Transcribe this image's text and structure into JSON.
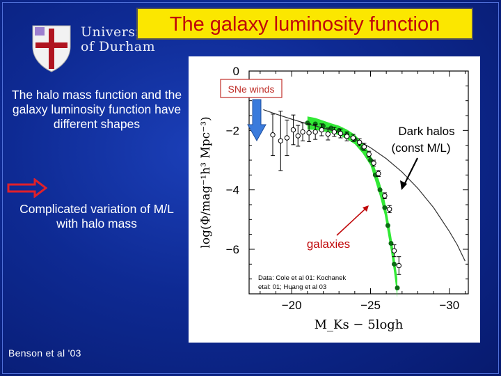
{
  "slide": {
    "title": "The galaxy luminosity function",
    "university": {
      "line1": "University",
      "line2": "of Durham"
    },
    "left_text_1": "The halo mass function and the galaxy luminosity function have different shapes",
    "left_text_2": "Complicated variation of M/L with halo mass",
    "credit": "Benson et al '03"
  },
  "colors": {
    "title_bg": "#fbe700",
    "title_text": "#c0080a",
    "arrow_red": "#e0202a",
    "green_band": "#27e82b",
    "blue_arrow": "#3a7bdc"
  },
  "icons": {
    "crest": "durham-crest-icon",
    "right_arrow": "right-arrow-icon"
  },
  "chart_data": {
    "type": "scatter",
    "xlabel": "M_Ks − 5logh",
    "ylabel": "log(Φ/mag⁻¹h³ Mpc⁻³)",
    "xlim": [
      -17.3,
      -31.2
    ],
    "ylim": [
      -7.5,
      0.0
    ],
    "xticks": [
      -20,
      -25,
      -30
    ],
    "xtick_labels": [
      "−20",
      "−25",
      "−30"
    ],
    "yticks": [
      0,
      -2,
      -4,
      -6
    ],
    "ytick_labels": [
      "0",
      "−2",
      "−4",
      "−6"
    ],
    "series": [
      {
        "name": "Dark halos (const M/L)",
        "kind": "line",
        "x": [
          -18.2,
          -19,
          -20,
          -21,
          -22,
          -23,
          -24,
          -25,
          -26,
          -27,
          -28,
          -29,
          -30,
          -30.5,
          -31
        ],
        "y": [
          -1.3,
          -1.45,
          -1.62,
          -1.78,
          -1.92,
          -2.07,
          -2.28,
          -2.58,
          -2.95,
          -3.4,
          -3.95,
          -4.6,
          -5.4,
          -5.85,
          -6.4
        ]
      },
      {
        "name": "galaxies",
        "kind": "band",
        "x": [
          -21.0,
          -21.5,
          -22,
          -22.5,
          -23,
          -23.5,
          -24,
          -24.5,
          -25,
          -25.3,
          -25.6,
          -25.9,
          -26.1,
          -26.3,
          -26.5,
          -26.7
        ],
        "y": [
          -1.75,
          -1.78,
          -1.85,
          -1.92,
          -2.0,
          -2.13,
          -2.3,
          -2.6,
          -3.0,
          -3.5,
          -4.0,
          -4.6,
          -5.2,
          -5.8,
          -6.5,
          -7.3
        ],
        "width": [
          0.22,
          0.2,
          0.18,
          0.16,
          0.16,
          0.16,
          0.16,
          0.17,
          0.18,
          0.2,
          0.22,
          0.24,
          0.26,
          0.28,
          0.3,
          0.32
        ]
      },
      {
        "name": "Data",
        "kind": "points",
        "x": [
          -18.8,
          -19.3,
          -19.7,
          -20.1,
          -20.4,
          -20.7,
          -21.1,
          -21.5,
          -21.9,
          -22.3,
          -22.7,
          -23.1,
          -23.5,
          -23.9,
          -24.3,
          -24.6,
          -24.9,
          -25.2,
          -25.5,
          -25.9,
          -26.2,
          -26.5,
          -26.8
        ],
        "y": [
          -2.15,
          -2.35,
          -2.25,
          -1.98,
          -2.18,
          -2.05,
          -2.08,
          -2.05,
          -1.98,
          -2.12,
          -2.05,
          -2.1,
          -2.2,
          -2.25,
          -2.4,
          -2.55,
          -2.8,
          -3.1,
          -3.45,
          -4.2,
          -4.65,
          -6.05,
          -6.55
        ],
        "err": [
          0.7,
          1.0,
          0.6,
          0.5,
          0.35,
          0.3,
          0.3,
          0.25,
          0.2,
          0.2,
          0.15,
          0.15,
          0.15,
          0.12,
          0.12,
          0.12,
          0.1,
          0.1,
          0.1,
          0.1,
          0.12,
          0.2,
          0.3
        ]
      }
    ],
    "annotations": [
      "SNe winds",
      "Dark halos (const M/L)",
      "galaxies",
      "Data: Cole et al 01: Kochanek etal: 01; Huang et al  03"
    ]
  }
}
